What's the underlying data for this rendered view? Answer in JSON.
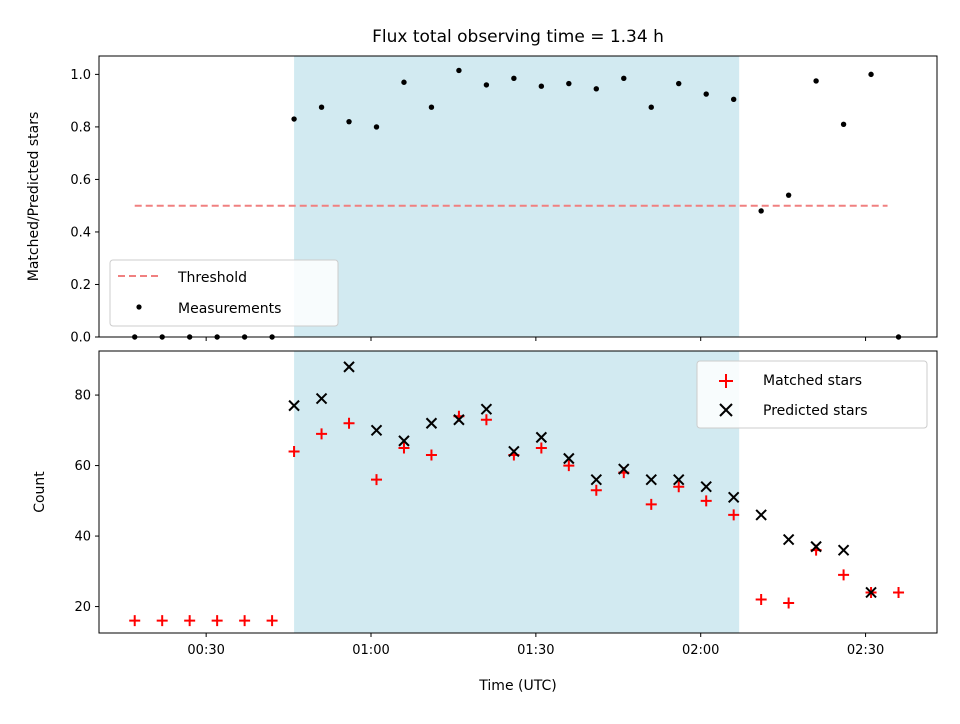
{
  "chart_data": {
    "type": "scatter",
    "title": "Flux total observing time = 1.34 h",
    "xlabel": "Time (UTC)",
    "x_ticks": [
      "00:30",
      "01:00",
      "01:30",
      "02:00",
      "02:30"
    ],
    "x_range_minutes_utc": [
      10.5,
      163
    ],
    "shaded_interval_utc": [
      "00:46",
      "02:07"
    ],
    "shade_color": "#add8e6",
    "panels": [
      {
        "ylabel": "Matched/Predicted stars",
        "ylim": [
          0,
          1.07
        ],
        "y_ticks": [
          "0.0",
          "0.2",
          "0.4",
          "0.6",
          "0.8",
          "1.0"
        ],
        "legend_position": "lower-left",
        "threshold": {
          "name": "Threshold",
          "value": 0.5,
          "x_from": "00:17",
          "x_to": "02:34",
          "color": "#f08080",
          "style": "dashed"
        },
        "series": [
          {
            "name": "Measurements",
            "marker": "dot",
            "color": "#000000",
            "x": [
              "00:17",
              "00:22",
              "00:27",
              "00:32",
              "00:37",
              "00:42",
              "00:46",
              "00:51",
              "00:56",
              "01:01",
              "01:06",
              "01:11",
              "01:16",
              "01:21",
              "01:26",
              "01:31",
              "01:36",
              "01:41",
              "01:46",
              "01:51",
              "01:56",
              "02:01",
              "02:06",
              "02:11",
              "02:16",
              "02:21",
              "02:26",
              "02:31",
              "02:36"
            ],
            "y": [
              0,
              0,
              0,
              0,
              0,
              0,
              0.83,
              0.875,
              0.82,
              0.8,
              0.97,
              0.875,
              1.015,
              0.96,
              0.985,
              0.955,
              0.965,
              0.945,
              0.985,
              0.875,
              0.965,
              0.925,
              0.905,
              0.48,
              0.54,
              0.975,
              0.81,
              1.0,
              0
            ]
          }
        ]
      },
      {
        "ylabel": "Count",
        "ylim": [
          12.5,
          92.5
        ],
        "y_ticks": [
          "20",
          "40",
          "60",
          "80"
        ],
        "legend_position": "upper-right",
        "series": [
          {
            "name": "Matched stars",
            "marker": "plus",
            "color": "#ff0000",
            "x": [
              "00:17",
              "00:22",
              "00:27",
              "00:32",
              "00:37",
              "00:42",
              "00:46",
              "00:51",
              "00:56",
              "01:01",
              "01:06",
              "01:11",
              "01:16",
              "01:21",
              "01:26",
              "01:31",
              "01:36",
              "01:41",
              "01:46",
              "01:51",
              "01:56",
              "02:01",
              "02:06",
              "02:11",
              "02:16",
              "02:21",
              "02:26",
              "02:31",
              "02:36"
            ],
            "y": [
              16,
              16,
              16,
              16,
              16,
              16,
              64,
              69,
              72,
              56,
              65,
              63,
              74,
              73,
              63,
              65,
              60,
              53,
              58,
              49,
              54,
              50,
              46,
              22,
              21,
              36,
              29,
              24,
              24
            ]
          },
          {
            "name": "Predicted stars",
            "marker": "x",
            "color": "#000000",
            "x": [
              "00:46",
              "00:51",
              "00:56",
              "01:01",
              "01:06",
              "01:11",
              "01:16",
              "01:21",
              "01:26",
              "01:31",
              "01:36",
              "01:41",
              "01:46",
              "01:51",
              "01:56",
              "02:01",
              "02:06",
              "02:11",
              "02:16",
              "02:21",
              "02:26",
              "02:31"
            ],
            "y": [
              77,
              79,
              88,
              70,
              67,
              72,
              73,
              76,
              64,
              68,
              62,
              56,
              59,
              56,
              56,
              54,
              51,
              46,
              39,
              37,
              36,
              24
            ]
          }
        ]
      }
    ]
  }
}
